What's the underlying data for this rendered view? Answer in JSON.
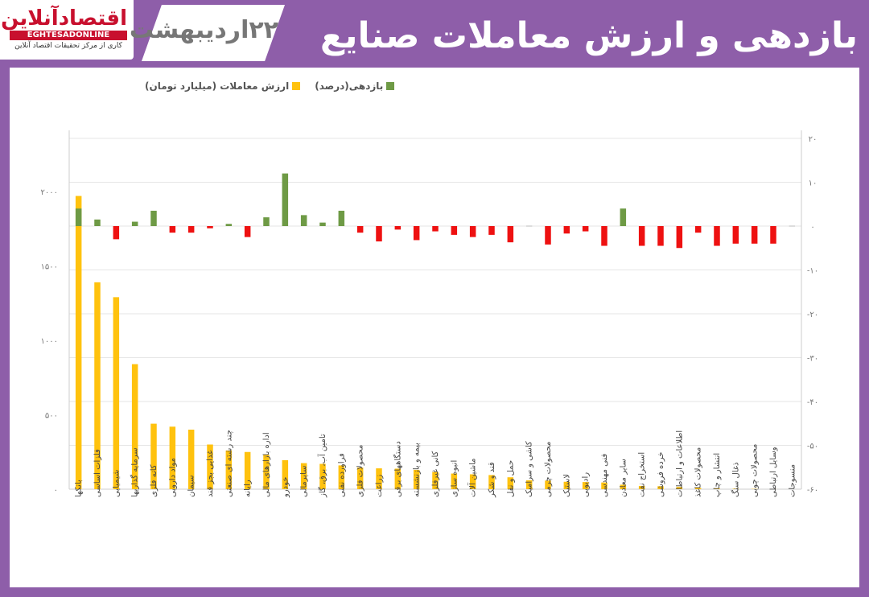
{
  "header": {
    "title": "بازدهی و ارزش معاملات صنایع بورسی",
    "date": "۲۲اردیبهشت",
    "logo_text": "اقتصادآنلاین",
    "logo_en": "EGHTESADONLINE",
    "logo_sub": "کاری از مرکز تحقیقات اقتصاد آنلاین"
  },
  "legend": {
    "return_label": "بازدهی(درصد)",
    "value_label": "ارزش معاملات (میلیارد تومان)"
  },
  "colors": {
    "background": "#8e5ea9",
    "value_bar": "#ffc20e",
    "return_pos": "#6e9a45",
    "return_neg": "#ee1111"
  },
  "chart_data": {
    "type": "bar",
    "categories": [
      "بانکها",
      "فلزات اساسی",
      "شیمیایی",
      "سرمایه گذاریها",
      "کانه فلزی",
      "مواد دارویی",
      "سیمان",
      "غذایی بجز قند",
      "چند رشته ای صنعتی",
      "رایانه",
      "اداره بازارهای مالی",
      "خودرو",
      "ساپرمالی",
      "تامین آب، برق، گاز",
      "فراورده نفتی",
      "محصولات فلزی",
      "زراعت",
      "دستگاههای برقی",
      "بیمه و بازنشسته",
      "کانی غیرفلزی",
      "انبوه سازی",
      "ماشین آلات",
      "قند و شکر",
      "حمل و نقل",
      "کاشی و سرامیک",
      "محصولات چرمی",
      "لاستیک",
      "رادیویی",
      "فنی مهندسی",
      "سایر معادن",
      "استخراج نفت",
      "خرده فروشی",
      "اطلاعات و ارتباطات",
      "محصولات کاغذ",
      "انتشار و چاپ",
      "ذغال سنگ",
      "محصولات چوبی",
      "وسایل ارتباطی",
      "منسوجات"
    ],
    "series": [
      {
        "name": "ارزش معاملات (میلیارد تومان)",
        "axis": "left",
        "values": [
          1970,
          1390,
          1290,
          840,
          440,
          420,
          400,
          300,
          260,
          250,
          230,
          195,
          175,
          170,
          160,
          145,
          140,
          138,
          130,
          115,
          105,
          100,
          95,
          80,
          60,
          58,
          50,
          48,
          45,
          30,
          22,
          20,
          15,
          8,
          5,
          3,
          2,
          1,
          0
        ]
      },
      {
        "name": "بازدهی(درصد)",
        "axis": "right",
        "values": [
          4,
          1.5,
          -3,
          1,
          3.5,
          -1.5,
          -1.5,
          -0.5,
          0.5,
          -2.5,
          2,
          12,
          2.5,
          0.8,
          3.5,
          -1.5,
          -3.5,
          -0.8,
          -3.2,
          -1.2,
          -2,
          -2.5,
          -2,
          -3.7,
          0,
          -4.2,
          -1.7,
          -1.2,
          -4.5,
          4,
          -4.5,
          -4.5,
          -5,
          -1.5,
          -4.5,
          -4,
          -4,
          -4,
          0
        ]
      }
    ],
    "left_axis": {
      "ylim": [
        0,
        2000
      ],
      "ticks": [
        0,
        500,
        1000,
        1500,
        2000
      ],
      "tick_labels": [
        "۰",
        "۵۰۰",
        "۱۰۰۰",
        "۱۵۰۰",
        "۲۰۰۰"
      ]
    },
    "right_axis": {
      "ylim": [
        -60,
        20
      ],
      "ticks": [
        20,
        10,
        0,
        -10,
        -20,
        -30,
        -40,
        -50,
        -60
      ],
      "tick_labels": [
        "۲۰",
        "۱۰",
        "۰",
        "-۱۰",
        "-۲۰",
        "-۳۰",
        "-۴۰",
        "-۵۰",
        "-۶۰"
      ]
    },
    "grid": true,
    "legend_position": "top-left"
  }
}
